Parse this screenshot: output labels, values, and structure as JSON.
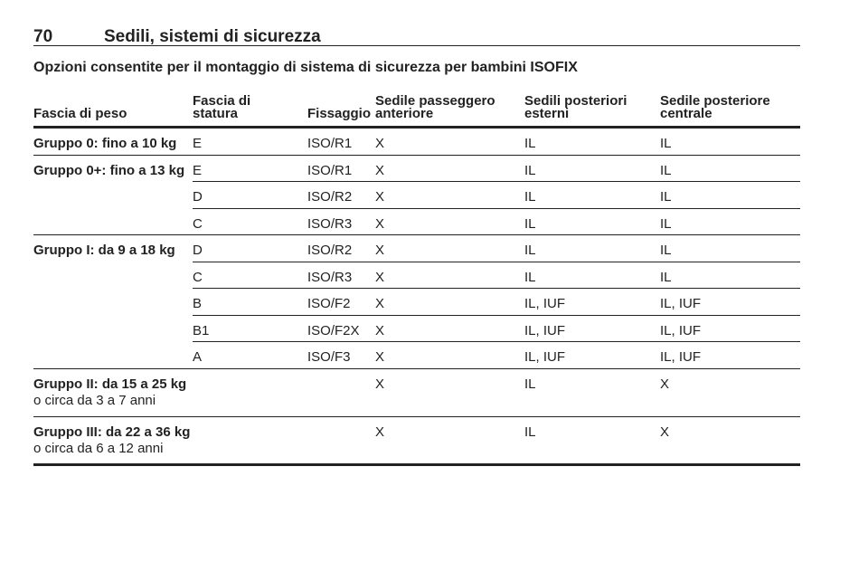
{
  "header": {
    "page_number": "70",
    "title": "Sedili, sistemi di sicurezza"
  },
  "subtitle": "Opzioni consentite per il montaggio di sistema di sicurezza per bambini ISOFIX",
  "table": {
    "columns": {
      "weight": "Fascia di peso",
      "size": [
        "Fascia di",
        "statura"
      ],
      "fixture": "Fissaggio",
      "front": [
        "Sedile passeggero",
        "anteriore"
      ],
      "outer": [
        "Sedili posteriori",
        "esterni"
      ],
      "center": [
        "Sedile posteriore",
        "centrale"
      ]
    },
    "groups": [
      {
        "label": "Gruppo 0: fino a 10 kg",
        "rows": [
          {
            "size": "E",
            "fixture": "ISO/R1",
            "front": "X",
            "outer": "IL",
            "center": "IL"
          }
        ]
      },
      {
        "label": "Gruppo 0+: fino a 13 kg",
        "rows": [
          {
            "size": "E",
            "fixture": "ISO/R1",
            "front": "X",
            "outer": "IL",
            "center": "IL"
          },
          {
            "size": "D",
            "fixture": "ISO/R2",
            "front": "X",
            "outer": "IL",
            "center": "IL"
          },
          {
            "size": "C",
            "fixture": "ISO/R3",
            "front": "X",
            "outer": "IL",
            "center": "IL"
          }
        ]
      },
      {
        "label": "Gruppo I: da 9 a 18 kg",
        "rows": [
          {
            "size": "D",
            "fixture": "ISO/R2",
            "front": "X",
            "outer": "IL",
            "center": "IL"
          },
          {
            "size": "C",
            "fixture": "ISO/R3",
            "front": "X",
            "outer": "IL",
            "center": "IL"
          },
          {
            "size": "B",
            "fixture": "ISO/F2",
            "front": "X",
            "outer": "IL, IUF",
            "center": "IL, IUF"
          },
          {
            "size": "B1",
            "fixture": "ISO/F2X",
            "front": "X",
            "outer": "IL, IUF",
            "center": "IL, IUF"
          },
          {
            "size": "A",
            "fixture": "ISO/F3",
            "front": "X",
            "outer": "IL, IUF",
            "center": "IL, IUF"
          }
        ]
      },
      {
        "label": "Gruppo II: da 15 a 25 kg",
        "note": "o circa da 3 a 7 anni",
        "rows": [
          {
            "front": "X",
            "outer": "IL",
            "center": "X"
          }
        ]
      },
      {
        "label": "Gruppo III: da 22 a 36 kg",
        "note": "o circa da 6 a 12 anni",
        "rows": [
          {
            "front": "X",
            "outer": "IL",
            "center": "X"
          }
        ]
      }
    ]
  }
}
